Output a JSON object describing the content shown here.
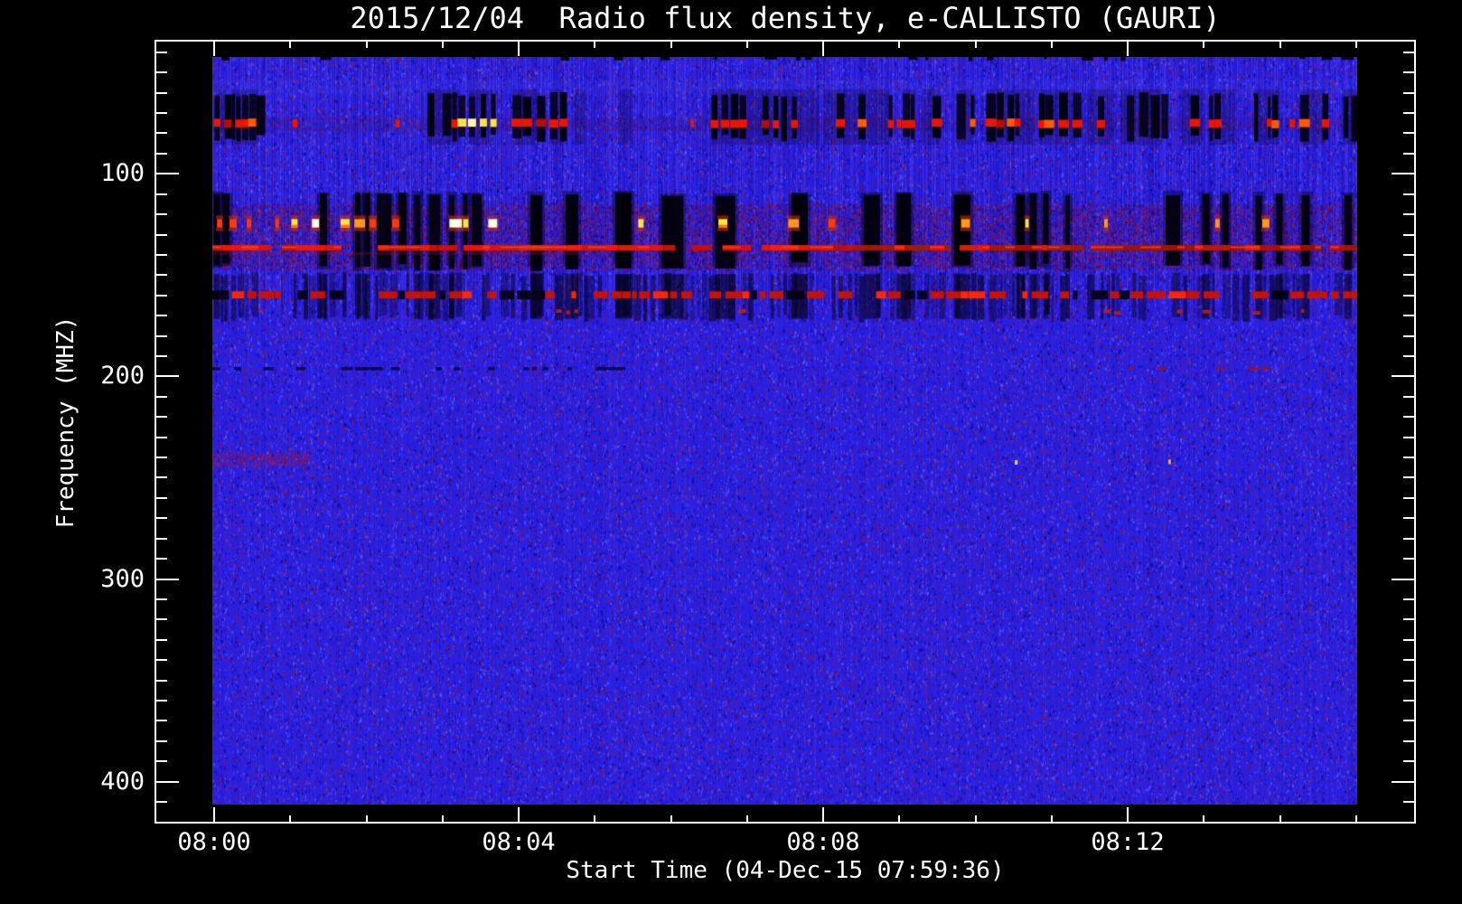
{
  "chart_data": {
    "type": "heatmap",
    "title": "2015/12/04  Radio flux density, e-CALLISTO (GAURI)",
    "xlabel": "Start Time (04-Dec-15 07:59:36)",
    "ylabel": "Frequency (MHZ)",
    "x_tick_labels": [
      "08:00",
      "08:04",
      "08:08",
      "08:12"
    ],
    "x_major_step_min": 4,
    "x_minor_step_min": 1,
    "x_minutes_shown": 15,
    "y_tick_labels": [
      "100",
      "200",
      "300",
      "400"
    ],
    "y_ticks_major_mhz": [
      100,
      200,
      300,
      400
    ],
    "y_minor_step_mhz": 10,
    "y_minor_range_mhz": [
      40,
      410
    ],
    "image_freq_range_mhz": [
      42.3,
      411.3
    ],
    "image_time_start": "07:59:36",
    "grid": false,
    "legend": false,
    "colors": {
      "background": "#000000",
      "text": "#ffffff",
      "frame": "#ffffff",
      "base_blue": "#2a1fe2",
      "speckle_red": "#8c1a50",
      "speckle_dark": "#08088c",
      "speckle_light": "#7870ff",
      "mottle_red": "#96193c",
      "mottle_purple": "#3c0850",
      "rfi_black": "#000005",
      "rfi_red": "#e81600",
      "rfi_red_bright": "#ff3a00",
      "rfi_red_dim": "#b40c00",
      "rfi_orange": "#ff9718",
      "rfi_yellow": "#ffe23c",
      "rfi_white": "#fff7b4"
    },
    "noise": {
      "seed": 20151204,
      "speckle_count": 95000,
      "band_mottle_count": 26000
    },
    "top_edge_dashes_mhz": [
      42.3,
      44.8
    ],
    "light_strip_mhz": [
      53.5,
      60.5
    ],
    "rfi_bands": [
      {
        "name": "band-75mhz",
        "freq_range_mhz": [
          61,
          82
        ],
        "line_freq_mhz": [
          73.1,
          77.1
        ],
        "clusters": [
          [
            0.002,
            0.012,
            0.92,
            0
          ],
          [
            0.017,
            0.04,
            0.95,
            0
          ],
          [
            0.188,
            0.216,
            0.75,
            1
          ],
          [
            0.224,
            0.245,
            0.75,
            1
          ],
          [
            0.262,
            0.285,
            0.8,
            0
          ],
          [
            0.295,
            0.305,
            0.7,
            0
          ],
          [
            0.316,
            0.325,
            0.6,
            0
          ],
          [
            0.356,
            0.366,
            0.8,
            0
          ],
          [
            0.436,
            0.53,
            0.78,
            0
          ],
          [
            0.534,
            0.592,
            0.72,
            0
          ],
          [
            0.603,
            0.614,
            0.7,
            0
          ],
          [
            0.62,
            0.635,
            0.7,
            0
          ],
          [
            0.65,
            0.664,
            0.7,
            0
          ],
          [
            0.676,
            0.718,
            0.8,
            0
          ],
          [
            0.722,
            0.754,
            0.75,
            0
          ],
          [
            0.764,
            0.786,
            0.6,
            0
          ],
          [
            0.793,
            0.83,
            0.75,
            0
          ],
          [
            0.847,
            0.865,
            0.6,
            0
          ],
          [
            0.871,
            0.893,
            0.65,
            0
          ],
          [
            0.91,
            0.932,
            0.6,
            0
          ],
          [
            0.95,
            0.972,
            0.6,
            0
          ],
          [
            0.988,
            1.0,
            0.85,
            0
          ]
        ],
        "isolated_dash_x": [
          0.07,
          0.16,
          0.418,
          0.598,
          0.941
        ]
      },
      {
        "name": "band-130mhz",
        "freq_range_mhz": [
          110,
          146
        ],
        "mottle_range_mhz": [
          114.5,
          147
        ],
        "bright_row_mhz": [
          122.3,
          126.5
        ],
        "line_freq_mhz": [
          135.1,
          137.8
        ],
        "line_bright_until_frac": 0.53,
        "dropouts": [
          [
            0.004,
            7
          ],
          [
            0.012,
            8
          ],
          [
            0.097,
            8
          ],
          [
            0.127,
            6
          ],
          [
            0.135,
            7
          ],
          [
            0.15,
            16
          ],
          [
            0.166,
            9
          ],
          [
            0.179,
            7
          ],
          [
            0.194,
            12
          ],
          [
            0.209,
            6
          ],
          [
            0.221,
            5
          ],
          [
            0.231,
            11
          ],
          [
            0.283,
            13
          ],
          [
            0.314,
            14
          ],
          [
            0.359,
            18
          ],
          [
            0.402,
            24
          ],
          [
            0.448,
            22
          ],
          [
            0.513,
            18
          ],
          [
            0.576,
            18
          ],
          [
            0.604,
            16
          ],
          [
            0.655,
            18
          ],
          [
            0.706,
            10
          ],
          [
            0.717,
            8
          ],
          [
            0.728,
            6
          ],
          [
            0.747,
            5
          ],
          [
            0.839,
            16
          ],
          [
            0.868,
            8
          ],
          [
            0.885,
            7
          ],
          [
            0.914,
            7
          ],
          [
            0.932,
            7
          ],
          [
            0.955,
            9
          ],
          [
            0.992,
            8
          ]
        ],
        "bright_spots": [
          [
            0.004,
            6,
            "r"
          ],
          [
            0.015,
            8,
            "r"
          ],
          [
            0.03,
            5,
            "r"
          ],
          [
            0.055,
            4,
            "r"
          ],
          [
            0.069,
            7,
            "y"
          ],
          [
            0.087,
            8,
            "w"
          ],
          [
            0.112,
            10,
            "y"
          ],
          [
            0.124,
            12,
            "o"
          ],
          [
            0.137,
            8,
            "r"
          ],
          [
            0.157,
            8,
            "r"
          ],
          [
            0.207,
            14,
            "w"
          ],
          [
            0.219,
            6,
            "y"
          ],
          [
            0.241,
            10,
            "w"
          ],
          [
            0.372,
            6,
            "y"
          ],
          [
            0.442,
            10,
            "y"
          ],
          [
            0.503,
            12,
            "o"
          ],
          [
            0.538,
            8,
            "r"
          ],
          [
            0.654,
            10,
            "o"
          ],
          [
            0.71,
            4,
            "y"
          ],
          [
            0.779,
            4,
            "o"
          ],
          [
            0.876,
            5,
            "o"
          ],
          [
            0.917,
            8,
            "o"
          ]
        ]
      },
      {
        "name": "band-160mhz",
        "freq_range_mhz": [
          149.5,
          171.5
        ],
        "line_freq_mhz": [
          158,
          161.5
        ],
        "sub_dash_mhz": [
          166.5,
          170.5
        ],
        "sub_dash_cluster": [
          0.279,
          0.332
        ]
      },
      {
        "name": "line-196mhz",
        "freq_range_mhz": [
          195.4,
          197.6
        ],
        "left_dark_until_frac": 0.38,
        "red_range_frac": [
          0.795,
          0.92
        ]
      },
      {
        "name": "faint-row-240mhz",
        "freq_range_mhz": [
          237.3,
          244
        ],
        "x_until_frac": 0.085
      }
    ],
    "bright_dots": [
      {
        "x_frac": 0.701,
        "freq_mhz": 241.3,
        "color": "#ffd24a"
      },
      {
        "x_frac": 0.835,
        "freq_mhz": 241.0,
        "color": "#ffb000"
      }
    ]
  }
}
